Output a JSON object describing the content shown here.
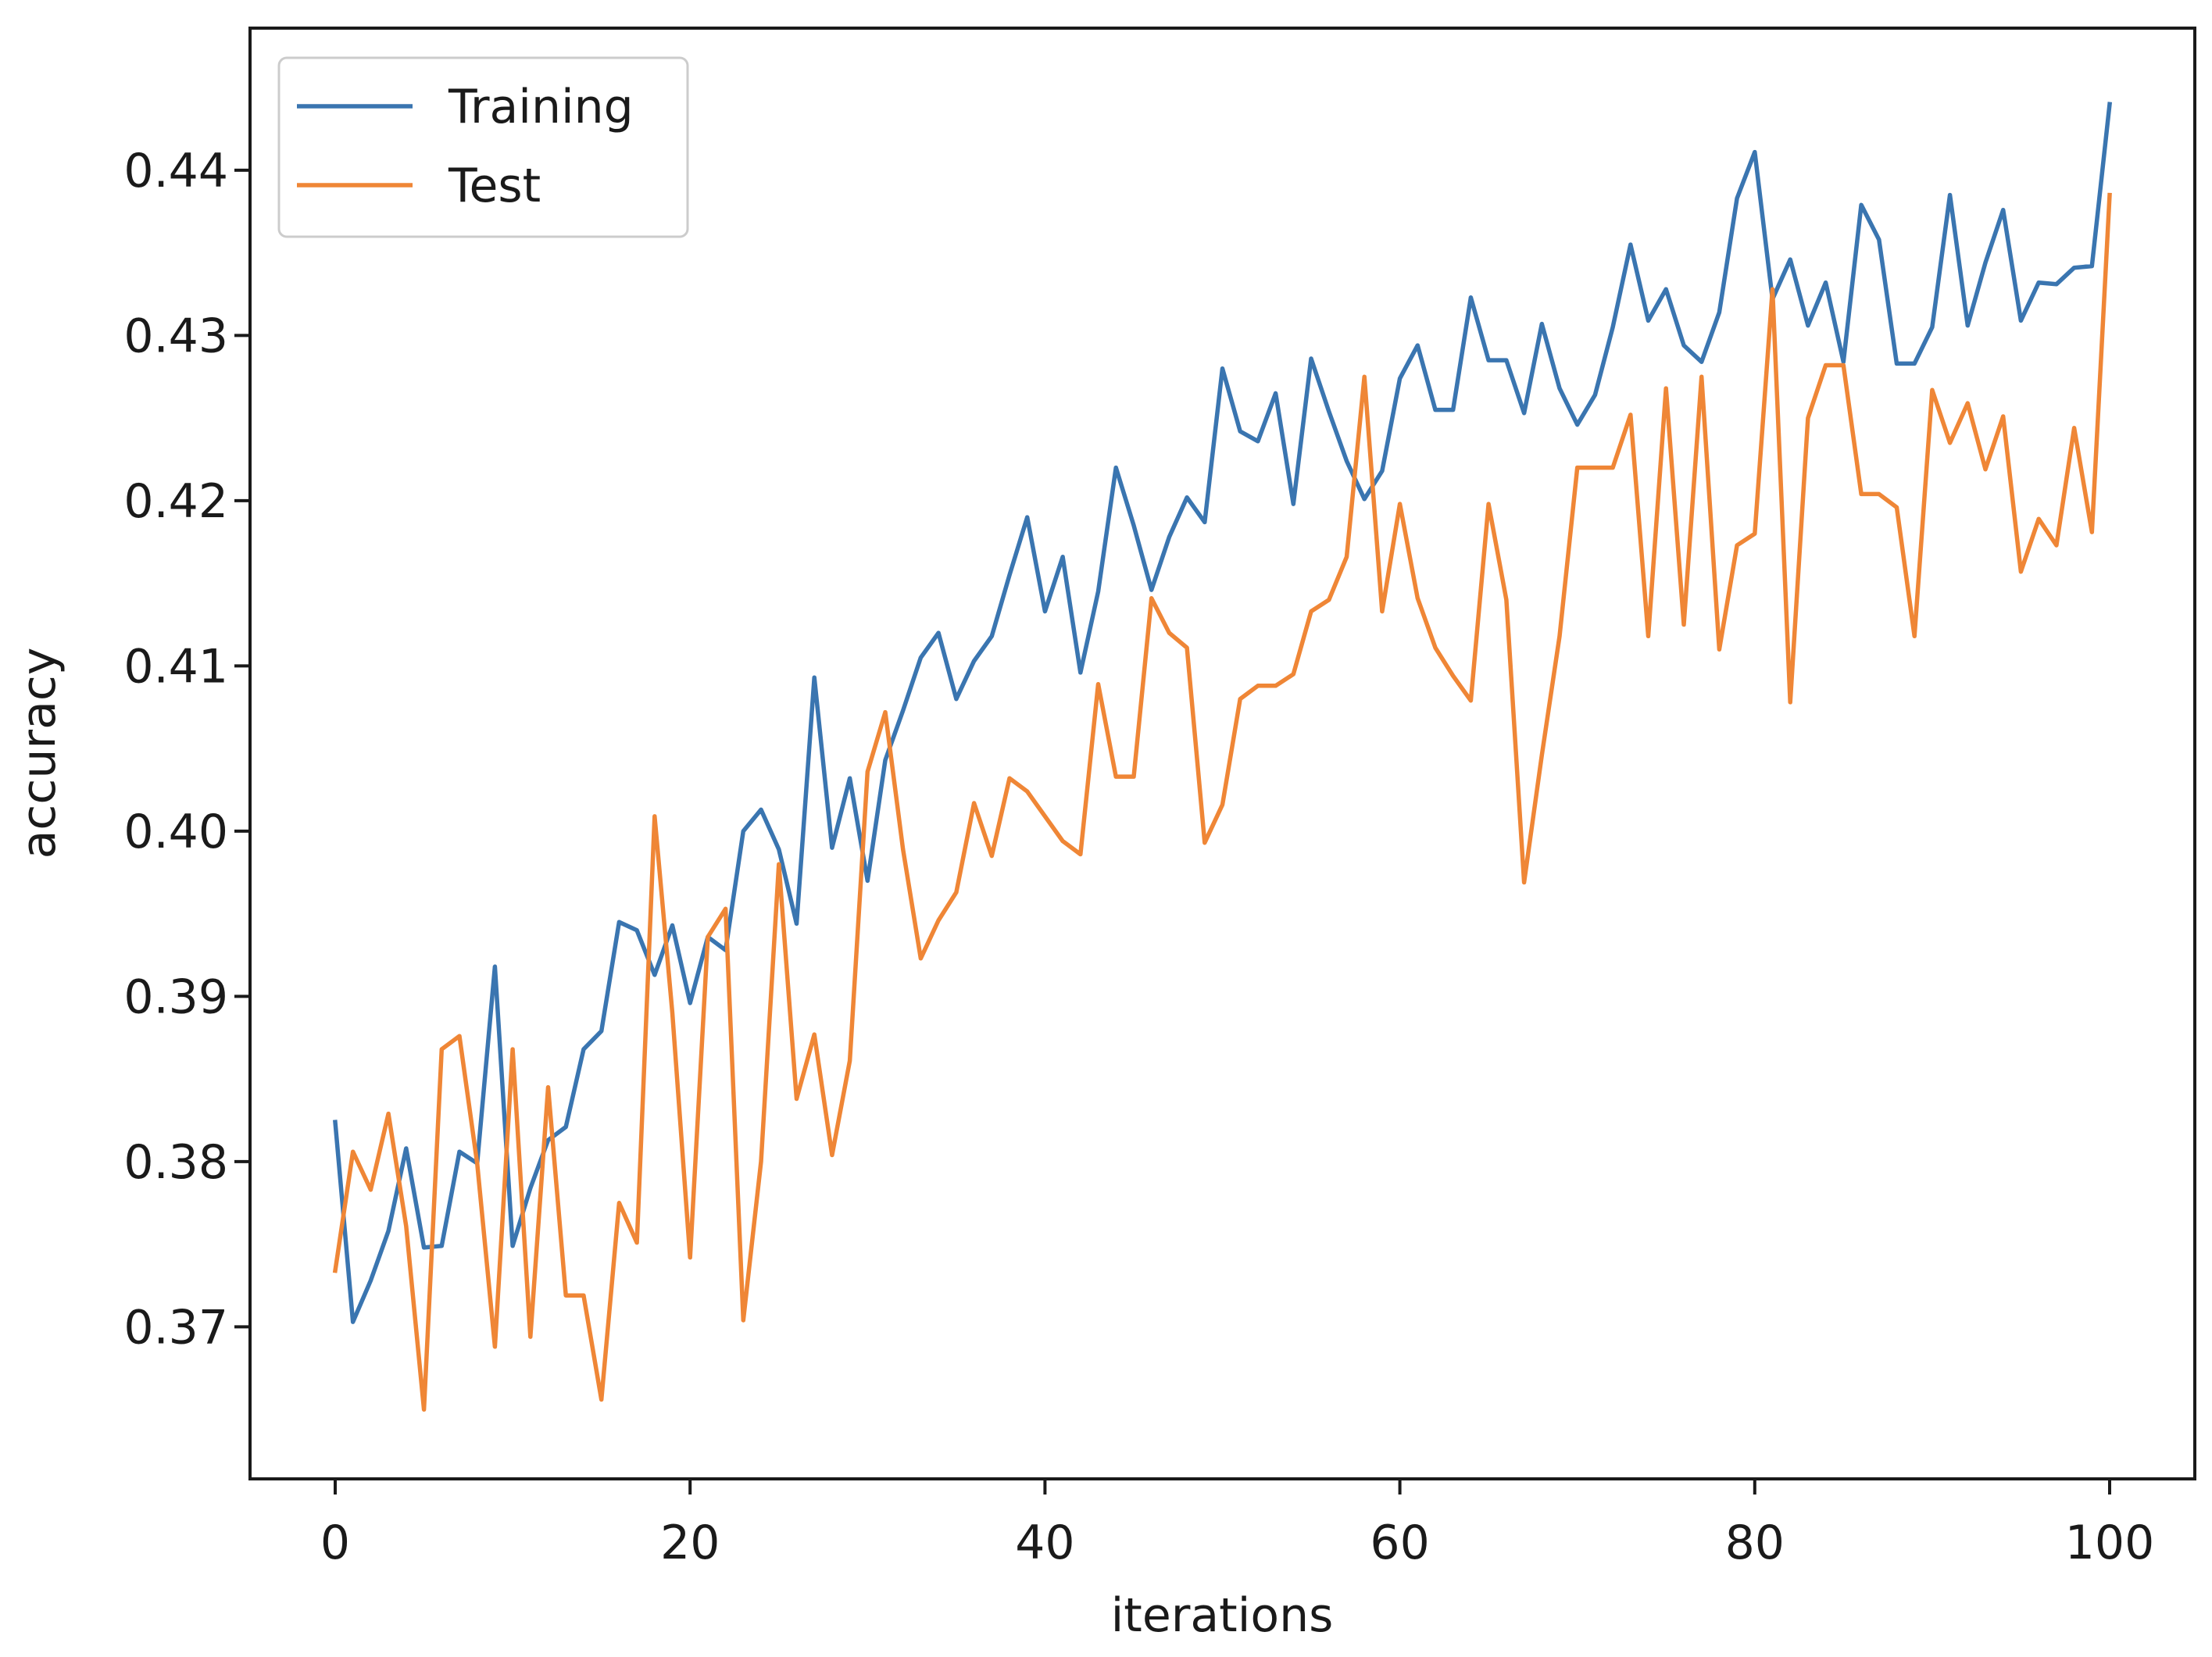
{
  "chart_data": {
    "type": "line",
    "title": "",
    "xlabel": "iterations",
    "ylabel": "accuracy",
    "xlim": [
      -4.8,
      104.8
    ],
    "ylim": [
      0.3608,
      0.4486
    ],
    "xticks": [
      0,
      20,
      40,
      60,
      80,
      100
    ],
    "xtick_labels": [
      "0",
      "20",
      "40",
      "60",
      "80",
      "100"
    ],
    "yticks": [
      0.37,
      0.38,
      0.39,
      0.4,
      0.41,
      0.42,
      0.43,
      0.44
    ],
    "ytick_labels": [
      "0.37",
      "0.38",
      "0.39",
      "0.40",
      "0.41",
      "0.42",
      "0.43",
      "0.44"
    ],
    "grid": false,
    "legend_position": "upper-left",
    "x": [
      0,
      1,
      2,
      3,
      4,
      5,
      6,
      7,
      8,
      9,
      10,
      11,
      12,
      13,
      14,
      15,
      16,
      17,
      18,
      19,
      20,
      21,
      22,
      23,
      24,
      25,
      26,
      27,
      28,
      29,
      30,
      31,
      32,
      33,
      34,
      35,
      36,
      37,
      38,
      39,
      40,
      41,
      42,
      43,
      44,
      45,
      46,
      47,
      48,
      49,
      50,
      51,
      52,
      53,
      54,
      55,
      56,
      57,
      58,
      59,
      60,
      61,
      62,
      63,
      64,
      65,
      66,
      67,
      68,
      69,
      70,
      71,
      72,
      73,
      74,
      75,
      76,
      77,
      78,
      79,
      80,
      81,
      82,
      83,
      84,
      85,
      86,
      87,
      88,
      89,
      90,
      91,
      92,
      93,
      94,
      95,
      96,
      97,
      98,
      99,
      100
    ],
    "series": [
      {
        "name": "Training",
        "color": "#3a75b0",
        "values": [
          0.3824,
          0.3703,
          0.3728,
          0.3758,
          0.3808,
          0.3748,
          0.3749,
          0.3806,
          0.3799,
          0.3918,
          0.3749,
          0.3784,
          0.3813,
          0.3821,
          0.3868,
          0.3879,
          0.3945,
          0.394,
          0.3913,
          0.3943,
          0.3896,
          0.3936,
          0.3928,
          0.4,
          0.4013,
          0.3989,
          0.3944,
          0.4093,
          0.399,
          0.4032,
          0.397,
          0.4043,
          0.4073,
          0.4105,
          0.412,
          0.408,
          0.4103,
          0.4118,
          0.4155,
          0.419,
          0.4133,
          0.4166,
          0.4096,
          0.4145,
          0.422,
          0.4185,
          0.4146,
          0.4178,
          0.4202,
          0.4187,
          0.428,
          0.4242,
          0.4236,
          0.4265,
          0.4198,
          0.4286,
          0.4254,
          0.4224,
          0.4201,
          0.4218,
          0.4274,
          0.4294,
          0.4255,
          0.4255,
          0.4323,
          0.4285,
          0.4285,
          0.4253,
          0.4307,
          0.4268,
          0.4246,
          0.4264,
          0.4305,
          0.4355,
          0.4309,
          0.4328,
          0.4294,
          0.4284,
          0.4314,
          0.4383,
          0.4411,
          0.4322,
          0.4346,
          0.4306,
          0.4332,
          0.4284,
          0.4379,
          0.4358,
          0.4283,
          0.4283,
          0.4305,
          0.4385,
          0.4306,
          0.4344,
          0.4376,
          0.4309,
          0.4332,
          0.4331,
          0.4341,
          0.4342,
          0.444
        ]
      },
      {
        "name": "Test",
        "color": "#ef8636",
        "values": [
          0.3734,
          0.3806,
          0.3783,
          0.3829,
          0.3761,
          0.365,
          0.3868,
          0.3876,
          0.3799,
          0.3688,
          0.3868,
          0.3694,
          0.3845,
          0.3719,
          0.3719,
          0.3656,
          0.3775,
          0.3751,
          0.4009,
          0.389,
          0.3742,
          0.3936,
          0.3953,
          0.3704,
          0.38,
          0.398,
          0.3838,
          0.3877,
          0.3804,
          0.3861,
          0.4036,
          0.4072,
          0.3989,
          0.3923,
          0.3946,
          0.3963,
          0.4017,
          0.3985,
          0.4032,
          0.4024,
          0.4009,
          0.3994,
          0.3986,
          0.4089,
          0.4033,
          0.4033,
          0.4141,
          0.412,
          0.4111,
          0.3993,
          0.4016,
          0.408,
          0.4088,
          0.4088,
          0.4095,
          0.4133,
          0.414,
          0.4166,
          0.4275,
          0.4133,
          0.4198,
          0.4141,
          0.4111,
          0.4094,
          0.4079,
          0.4198,
          0.414,
          0.3969,
          0.4046,
          0.4118,
          0.422,
          0.422,
          0.422,
          0.4252,
          0.4118,
          0.4268,
          0.4125,
          0.4275,
          0.411,
          0.4173,
          0.418,
          0.4328,
          0.4078,
          0.425,
          0.4282,
          0.4282,
          0.4204,
          0.4204,
          0.4196,
          0.4118,
          0.4267,
          0.4235,
          0.4259,
          0.4219,
          0.4251,
          0.4157,
          0.4189,
          0.4173,
          0.4244,
          0.4181,
          0.4385
        ]
      }
    ]
  }
}
